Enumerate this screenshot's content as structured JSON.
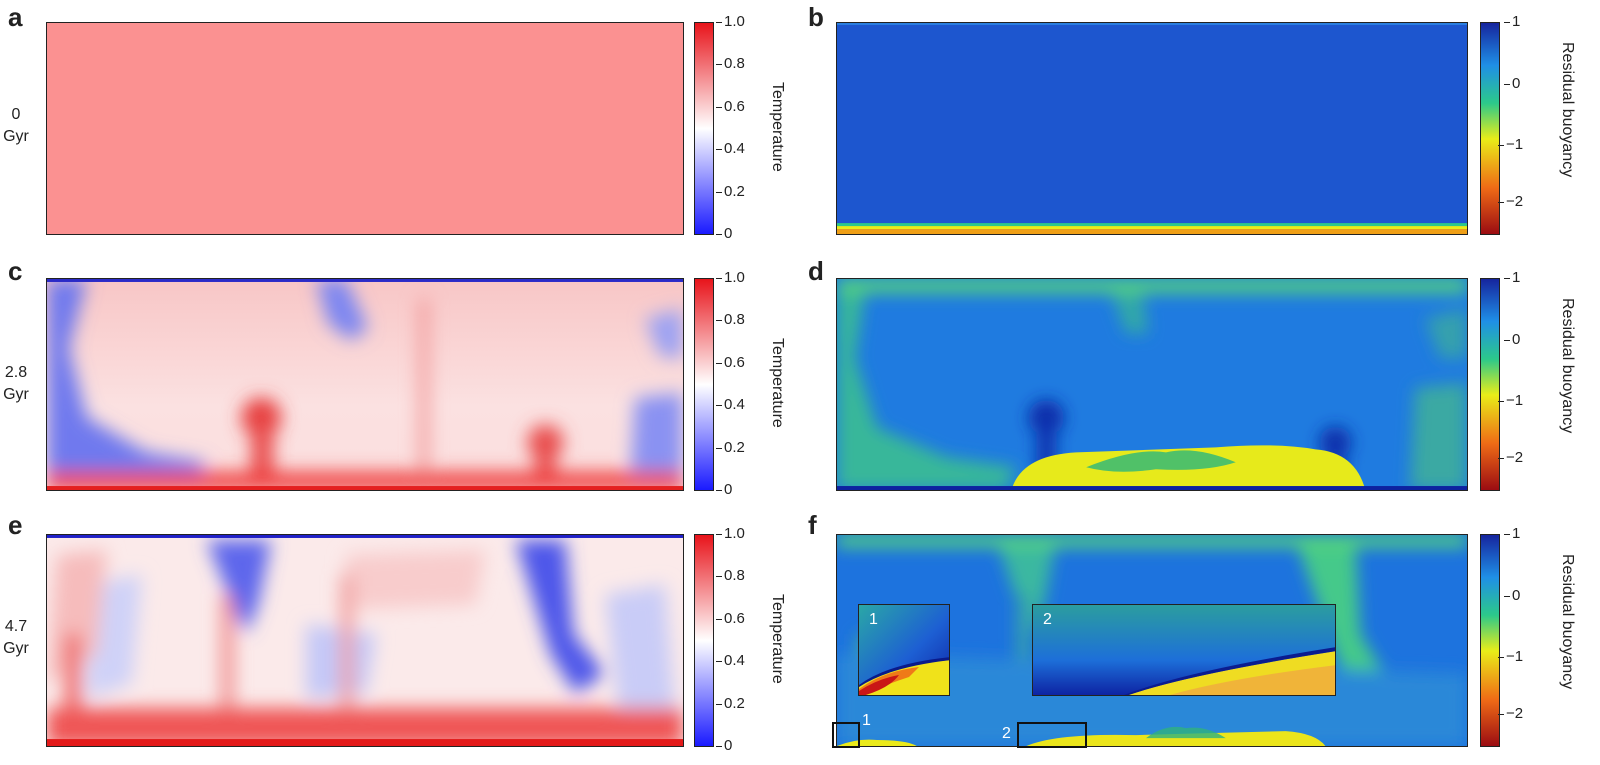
{
  "panels": [
    {
      "letter": "a",
      "time": [
        "0",
        "Gyr"
      ],
      "kind": "temperature"
    },
    {
      "letter": "b",
      "kind": "buoyancy"
    },
    {
      "letter": "c",
      "time": [
        "2.8",
        "Gyr"
      ],
      "kind": "temperature"
    },
    {
      "letter": "d",
      "kind": "buoyancy"
    },
    {
      "letter": "e",
      "time": [
        "4.7",
        "Gyr"
      ],
      "kind": "temperature"
    },
    {
      "letter": "f",
      "kind": "buoyancy"
    }
  ],
  "temperature_colorbar": {
    "title": "Temperature",
    "ticks": [
      "1.0",
      "0.8",
      "0.6",
      "0.4",
      "0.2",
      "0"
    ],
    "colors": [
      "#e8141b",
      "#ffffff",
      "#1a1aff"
    ]
  },
  "buoyancy_colorbar": {
    "title": "Residual buoyancy",
    "ticks": [
      "1",
      "0",
      "−1",
      "−2"
    ],
    "colors": [
      "#16259e",
      "#1f8fe6",
      "#2cc98a",
      "#e9ed18",
      "#ef6b16",
      "#9b0c12"
    ]
  },
  "insets": {
    "one": "1",
    "two": "2"
  },
  "zoom_labels": {
    "one": "1",
    "two": "2"
  }
}
